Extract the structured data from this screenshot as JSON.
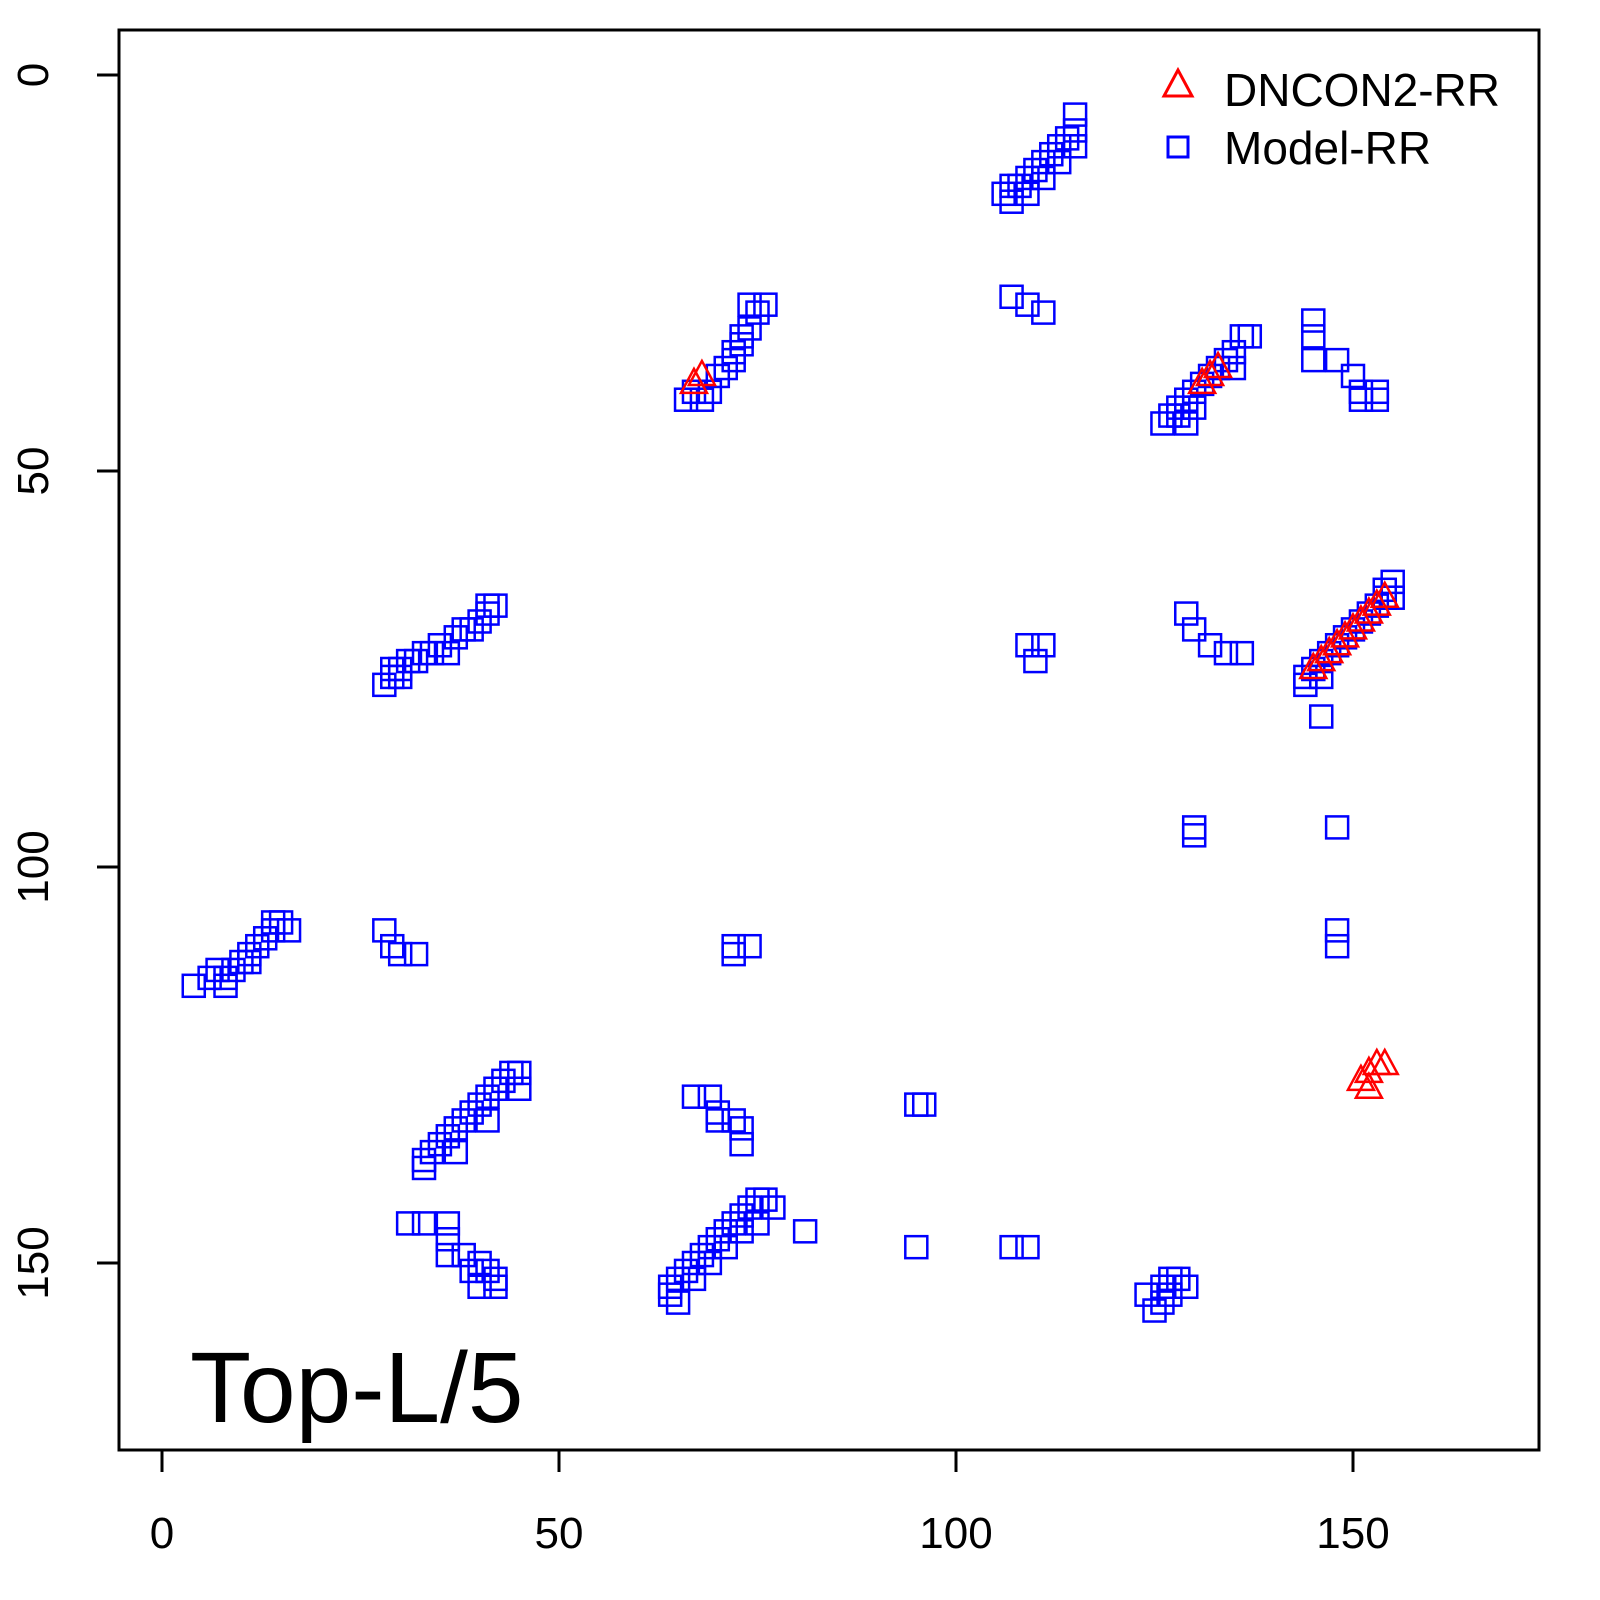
{
  "chart_data": {
    "type": "scatter",
    "annotation": "Top-L/5",
    "x_ticks": [
      "0",
      "50",
      "100",
      "150"
    ],
    "y_ticks": [
      "0",
      "50",
      "100",
      "150"
    ],
    "xlim": [
      -5.5,
      168.5
    ],
    "ylim": [
      -5.5,
      168.5
    ],
    "y_axis": "reversed",
    "legend_position": "top-right",
    "grid": false,
    "series": [
      {
        "name": "DNCON2-RR",
        "marker": "triangle",
        "color": "#ff0000",
        "points": [
          [
            67,
            39
          ],
          [
            68,
            38
          ],
          [
            131,
            39
          ],
          [
            132,
            38
          ],
          [
            133,
            37
          ],
          [
            145,
            75
          ],
          [
            146,
            74
          ],
          [
            147,
            73
          ],
          [
            148,
            72
          ],
          [
            149,
            71
          ],
          [
            150,
            70
          ],
          [
            151,
            69
          ],
          [
            152,
            68
          ],
          [
            153,
            67
          ],
          [
            154,
            66
          ],
          [
            151,
            127
          ],
          [
            152,
            126
          ],
          [
            153,
            125
          ],
          [
            152,
            128
          ],
          [
            154,
            125
          ]
        ]
      },
      {
        "name": "Model-RR",
        "marker": "square",
        "color": "#0000ff",
        "points": [
          [
            106,
            15
          ],
          [
            107,
            16
          ],
          [
            108,
            14
          ],
          [
            109,
            13
          ],
          [
            110,
            12
          ],
          [
            111,
            11
          ],
          [
            112,
            10
          ],
          [
            113,
            9
          ],
          [
            114,
            8
          ],
          [
            115,
            7
          ],
          [
            115,
            5
          ],
          [
            107,
            14
          ],
          [
            109,
            15
          ],
          [
            111,
            13
          ],
          [
            113,
            11
          ],
          [
            115,
            9
          ],
          [
            107,
            28
          ],
          [
            109,
            29
          ],
          [
            111,
            30
          ],
          [
            66,
            41
          ],
          [
            67,
            40
          ],
          [
            68,
            41
          ],
          [
            69,
            40
          ],
          [
            70,
            38
          ],
          [
            71,
            37
          ],
          [
            72,
            35
          ],
          [
            73,
            33
          ],
          [
            74,
            32
          ],
          [
            75,
            30
          ],
          [
            74,
            29
          ],
          [
            76,
            29
          ],
          [
            73,
            34
          ],
          [
            72,
            36
          ],
          [
            126,
            44
          ],
          [
            127,
            43
          ],
          [
            128,
            42
          ],
          [
            129,
            41
          ],
          [
            130,
            40
          ],
          [
            131,
            39
          ],
          [
            132,
            38
          ],
          [
            133,
            37
          ],
          [
            134,
            36
          ],
          [
            135,
            35
          ],
          [
            136,
            33
          ],
          [
            137,
            33
          ],
          [
            129,
            44
          ],
          [
            128,
            43
          ],
          [
            130,
            42
          ],
          [
            135,
            37
          ],
          [
            145,
            31
          ],
          [
            145,
            33
          ],
          [
            145,
            36
          ],
          [
            148,
            36
          ],
          [
            150,
            38
          ],
          [
            151,
            40
          ],
          [
            153,
            40
          ],
          [
            151,
            41
          ],
          [
            153,
            41
          ],
          [
            42,
            67
          ],
          [
            41,
            68
          ],
          [
            40,
            69
          ],
          [
            38,
            70
          ],
          [
            37,
            71
          ],
          [
            35,
            72
          ],
          [
            34,
            73
          ],
          [
            32,
            74
          ],
          [
            31,
            74
          ],
          [
            30,
            75
          ],
          [
            29,
            76
          ],
          [
            28,
            77
          ],
          [
            29,
            75
          ],
          [
            30,
            76
          ],
          [
            33,
            73
          ],
          [
            36,
            73
          ],
          [
            39,
            70
          ],
          [
            41,
            67
          ],
          [
            129,
            68
          ],
          [
            130,
            70
          ],
          [
            132,
            72
          ],
          [
            134,
            73
          ],
          [
            136,
            73
          ],
          [
            109,
            72
          ],
          [
            110,
            74
          ],
          [
            111,
            72
          ],
          [
            145,
            75
          ],
          [
            146,
            74
          ],
          [
            147,
            73
          ],
          [
            148,
            72
          ],
          [
            149,
            71
          ],
          [
            150,
            70
          ],
          [
            151,
            69
          ],
          [
            152,
            68
          ],
          [
            153,
            67
          ],
          [
            154,
            65
          ],
          [
            155,
            64
          ],
          [
            154,
            66
          ],
          [
            155,
            66
          ],
          [
            144,
            77
          ],
          [
            144,
            76
          ],
          [
            146,
            76
          ],
          [
            146,
            81
          ],
          [
            130,
            96
          ],
          [
            130,
            95
          ],
          [
            148,
            95
          ],
          [
            148,
            108
          ],
          [
            148,
            110
          ],
          [
            4,
            115
          ],
          [
            6,
            114
          ],
          [
            7,
            113
          ],
          [
            8,
            114
          ],
          [
            9,
            113
          ],
          [
            10,
            112
          ],
          [
            11,
            111
          ],
          [
            12,
            110
          ],
          [
            13,
            109
          ],
          [
            14,
            108
          ],
          [
            15,
            107
          ],
          [
            16,
            108
          ],
          [
            8,
            115
          ],
          [
            11,
            112
          ],
          [
            14,
            107
          ],
          [
            28,
            108
          ],
          [
            29,
            110
          ],
          [
            30,
            111
          ],
          [
            32,
            111
          ],
          [
            72,
            110
          ],
          [
            72,
            111
          ],
          [
            74,
            110
          ],
          [
            33,
            137
          ],
          [
            34,
            136
          ],
          [
            35,
            135
          ],
          [
            36,
            134
          ],
          [
            37,
            133
          ],
          [
            38,
            132
          ],
          [
            39,
            131
          ],
          [
            40,
            130
          ],
          [
            41,
            129
          ],
          [
            42,
            128
          ],
          [
            43,
            127
          ],
          [
            44,
            126
          ],
          [
            45,
            126
          ],
          [
            33,
            138
          ],
          [
            37,
            136
          ],
          [
            41,
            132
          ],
          [
            45,
            128
          ],
          [
            67,
            129
          ],
          [
            69,
            129
          ],
          [
            70,
            131
          ],
          [
            70,
            132
          ],
          [
            72,
            132
          ],
          [
            73,
            133
          ],
          [
            73,
            135
          ],
          [
            95,
            130
          ],
          [
            96,
            130
          ],
          [
            31,
            145
          ],
          [
            33,
            145
          ],
          [
            36,
            145
          ],
          [
            36,
            147
          ],
          [
            36,
            149
          ],
          [
            38,
            149
          ],
          [
            39,
            151
          ],
          [
            40,
            150
          ],
          [
            41,
            151
          ],
          [
            42,
            152
          ],
          [
            40,
            153
          ],
          [
            42,
            153
          ],
          [
            64,
            153
          ],
          [
            64,
            154
          ],
          [
            65,
            152
          ],
          [
            66,
            151
          ],
          [
            67,
            150
          ],
          [
            68,
            149
          ],
          [
            69,
            148
          ],
          [
            70,
            147
          ],
          [
            71,
            146
          ],
          [
            72,
            145
          ],
          [
            73,
            144
          ],
          [
            74,
            143
          ],
          [
            75,
            142
          ],
          [
            76,
            142
          ],
          [
            73,
            146
          ],
          [
            71,
            148
          ],
          [
            69,
            150
          ],
          [
            67,
            152
          ],
          [
            65,
            155
          ],
          [
            75,
            145
          ],
          [
            77,
            143
          ],
          [
            81,
            146
          ],
          [
            95,
            148
          ],
          [
            107,
            148
          ],
          [
            109,
            148
          ],
          [
            124,
            154
          ],
          [
            125,
            156
          ],
          [
            126,
            153
          ],
          [
            127,
            152
          ],
          [
            128,
            152
          ],
          [
            129,
            153
          ],
          [
            126,
            155
          ],
          [
            127,
            154
          ]
        ]
      }
    ]
  }
}
